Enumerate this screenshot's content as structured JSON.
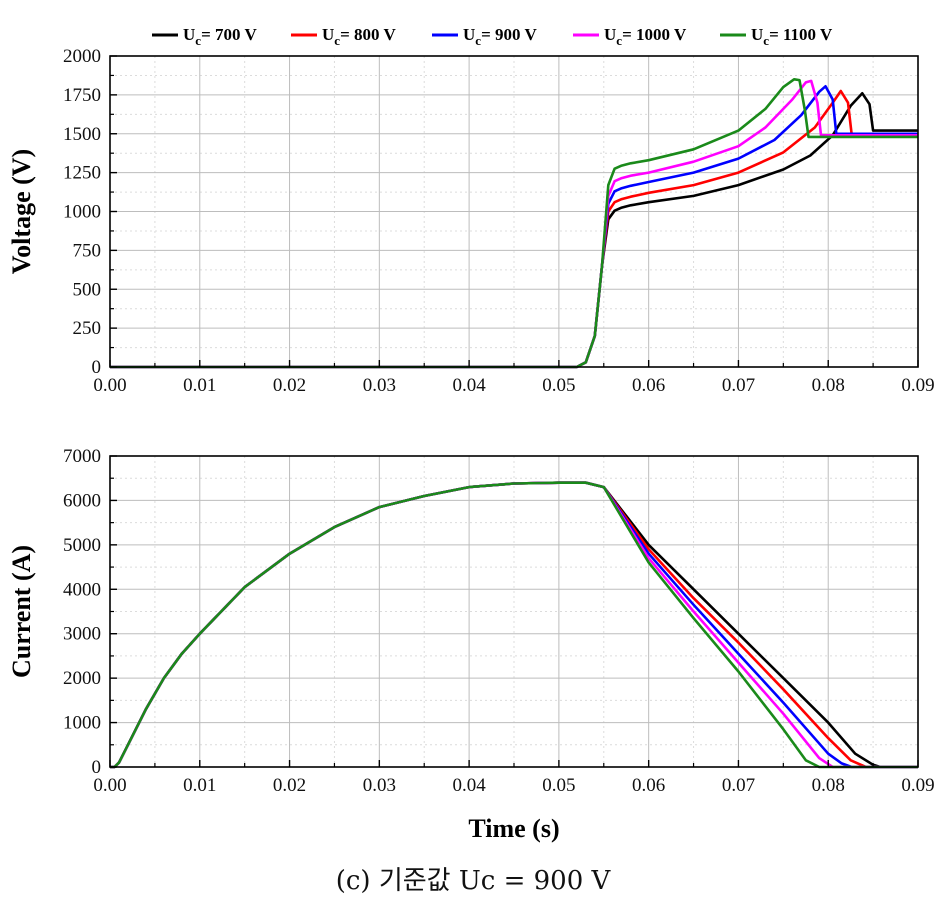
{
  "caption": "(c) 기준값 Uc = 900 V",
  "colors": {
    "700": "#000000",
    "800": "#ff0000",
    "900": "#0000ff",
    "1000": "#ff00ff",
    "1100": "#1a8a1a"
  },
  "chart_data": [
    {
      "type": "line",
      "title": "",
      "xlabel": "",
      "ylabel": "Voltage (V)",
      "xlim": [
        0,
        0.09
      ],
      "ylim": [
        0,
        2000
      ],
      "xticks": [
        "0.00",
        "0.01",
        "0.02",
        "0.03",
        "0.04",
        "0.05",
        "0.06",
        "0.07",
        "0.08",
        "0.09"
      ],
      "yticks": [
        "0",
        "250",
        "500",
        "750",
        "1000",
        "1250",
        "1500",
        "1750",
        "2000"
      ],
      "grid": true,
      "legend": "top, horizontal",
      "series": [
        {
          "name": "Uc= 700 V",
          "color": "#000000",
          "x": [
            0,
            0.052,
            0.053,
            0.054,
            0.0548,
            0.0555,
            0.0562,
            0.057,
            0.058,
            0.06,
            0.065,
            0.07,
            0.075,
            0.078,
            0.0805,
            0.0825,
            0.0838,
            0.0846,
            0.085,
            0.09
          ],
          "y": [
            0,
            0,
            30,
            200,
            650,
            950,
            1005,
            1025,
            1040,
            1060,
            1100,
            1170,
            1270,
            1360,
            1490,
            1680,
            1760,
            1690,
            1520,
            1520
          ]
        },
        {
          "name": "Uc= 800 V",
          "color": "#ff0000",
          "x": [
            0,
            0.052,
            0.053,
            0.054,
            0.0548,
            0.0555,
            0.0562,
            0.057,
            0.058,
            0.06,
            0.065,
            0.07,
            0.075,
            0.0785,
            0.0805,
            0.0814,
            0.0822,
            0.0826,
            0.09
          ],
          "y": [
            0,
            0,
            30,
            200,
            650,
            1000,
            1060,
            1080,
            1095,
            1120,
            1170,
            1250,
            1380,
            1540,
            1700,
            1775,
            1700,
            1500,
            1500
          ]
        },
        {
          "name": "Uc= 900 V",
          "color": "#0000ff",
          "x": [
            0,
            0.052,
            0.053,
            0.054,
            0.0548,
            0.0555,
            0.0562,
            0.057,
            0.058,
            0.06,
            0.065,
            0.07,
            0.074,
            0.077,
            0.079,
            0.0797,
            0.0805,
            0.0809,
            0.09
          ],
          "y": [
            0,
            0,
            30,
            200,
            650,
            1050,
            1130,
            1150,
            1165,
            1190,
            1250,
            1340,
            1460,
            1620,
            1770,
            1805,
            1720,
            1500,
            1500
          ]
        },
        {
          "name": "Uc= 1000 V",
          "color": "#ff00ff",
          "x": [
            0,
            0.052,
            0.053,
            0.054,
            0.0548,
            0.0555,
            0.0562,
            0.057,
            0.058,
            0.06,
            0.065,
            0.07,
            0.073,
            0.076,
            0.0775,
            0.0781,
            0.0788,
            0.0792,
            0.09
          ],
          "y": [
            0,
            0,
            30,
            200,
            650,
            1100,
            1195,
            1215,
            1230,
            1250,
            1320,
            1420,
            1540,
            1720,
            1830,
            1840,
            1700,
            1490,
            1490
          ]
        },
        {
          "name": "Uc= 1100 V",
          "color": "#1a8a1a",
          "x": [
            0,
            0.052,
            0.053,
            0.054,
            0.0548,
            0.0555,
            0.0562,
            0.057,
            0.058,
            0.06,
            0.065,
            0.07,
            0.073,
            0.075,
            0.0762,
            0.0768,
            0.0774,
            0.0778,
            0.09
          ],
          "y": [
            0,
            0,
            30,
            200,
            650,
            1170,
            1275,
            1295,
            1310,
            1330,
            1400,
            1520,
            1660,
            1800,
            1850,
            1845,
            1650,
            1480,
            1480
          ]
        }
      ]
    },
    {
      "type": "line",
      "title": "",
      "xlabel": "Time (s)",
      "ylabel": "Current (A)",
      "xlim": [
        0,
        0.09
      ],
      "ylim": [
        0,
        7000
      ],
      "xticks": [
        "0.00",
        "0.01",
        "0.02",
        "0.03",
        "0.04",
        "0.05",
        "0.06",
        "0.07",
        "0.08",
        "0.09"
      ],
      "yticks": [
        "0",
        "1000",
        "2000",
        "3000",
        "4000",
        "5000",
        "6000",
        "7000"
      ],
      "grid": true,
      "series": [
        {
          "name": "Uc= 700 V",
          "color": "#000000",
          "x": [
            0,
            0.0005,
            0.001,
            0.002,
            0.004,
            0.006,
            0.008,
            0.01,
            0.015,
            0.02,
            0.025,
            0.03,
            0.035,
            0.04,
            0.045,
            0.05,
            0.053,
            0.055,
            0.06,
            0.065,
            0.07,
            0.075,
            0.08,
            0.083,
            0.085,
            0.0858,
            0.087,
            0.09
          ],
          "y": [
            0,
            0,
            100,
            500,
            1300,
            2000,
            2550,
            3000,
            4050,
            4800,
            5400,
            5850,
            6100,
            6300,
            6380,
            6400,
            6400,
            6300,
            5000,
            4000,
            3000,
            2000,
            1000,
            300,
            50,
            0,
            0,
            0
          ]
        },
        {
          "name": "Uc= 800 V",
          "color": "#ff0000",
          "x": [
            0,
            0.0005,
            0.001,
            0.002,
            0.004,
            0.006,
            0.008,
            0.01,
            0.015,
            0.02,
            0.025,
            0.03,
            0.035,
            0.04,
            0.045,
            0.05,
            0.053,
            0.055,
            0.06,
            0.065,
            0.07,
            0.075,
            0.08,
            0.0825,
            0.0842,
            0.09
          ],
          "y": [
            0,
            0,
            100,
            500,
            1300,
            2000,
            2550,
            3000,
            4050,
            4800,
            5400,
            5850,
            6100,
            6300,
            6380,
            6400,
            6400,
            6300,
            4900,
            3800,
            2800,
            1750,
            650,
            150,
            0,
            0
          ]
        },
        {
          "name": "Uc= 900 V",
          "color": "#0000ff",
          "x": [
            0,
            0.0005,
            0.001,
            0.002,
            0.004,
            0.006,
            0.008,
            0.01,
            0.015,
            0.02,
            0.025,
            0.03,
            0.035,
            0.04,
            0.045,
            0.05,
            0.053,
            0.055,
            0.06,
            0.065,
            0.07,
            0.075,
            0.08,
            0.0815,
            0.0826,
            0.09
          ],
          "y": [
            0,
            0,
            100,
            500,
            1300,
            2000,
            2550,
            3000,
            4050,
            4800,
            5400,
            5850,
            6100,
            6300,
            6380,
            6400,
            6400,
            6300,
            4800,
            3650,
            2550,
            1450,
            300,
            80,
            0,
            0
          ]
        },
        {
          "name": "Uc= 1000 V",
          "color": "#ff00ff",
          "x": [
            0,
            0.0005,
            0.001,
            0.002,
            0.004,
            0.006,
            0.008,
            0.01,
            0.015,
            0.02,
            0.025,
            0.03,
            0.035,
            0.04,
            0.045,
            0.05,
            0.053,
            0.055,
            0.06,
            0.065,
            0.07,
            0.075,
            0.079,
            0.0805,
            0.09
          ],
          "y": [
            0,
            0,
            100,
            500,
            1300,
            2000,
            2550,
            3000,
            4050,
            4800,
            5400,
            5850,
            6100,
            6300,
            6380,
            6400,
            6400,
            6300,
            4700,
            3500,
            2350,
            1200,
            200,
            0,
            0
          ]
        },
        {
          "name": "Uc= 1100 V",
          "color": "#1a8a1a",
          "x": [
            0,
            0.0005,
            0.001,
            0.002,
            0.004,
            0.006,
            0.008,
            0.01,
            0.015,
            0.02,
            0.025,
            0.03,
            0.035,
            0.04,
            0.045,
            0.05,
            0.053,
            0.055,
            0.06,
            0.065,
            0.07,
            0.075,
            0.0775,
            0.079,
            0.09
          ],
          "y": [
            0,
            0,
            100,
            500,
            1300,
            2000,
            2550,
            3000,
            4050,
            4800,
            5400,
            5850,
            6100,
            6300,
            6380,
            6400,
            6400,
            6300,
            4600,
            3350,
            2150,
            850,
            150,
            0,
            0
          ]
        }
      ]
    }
  ]
}
